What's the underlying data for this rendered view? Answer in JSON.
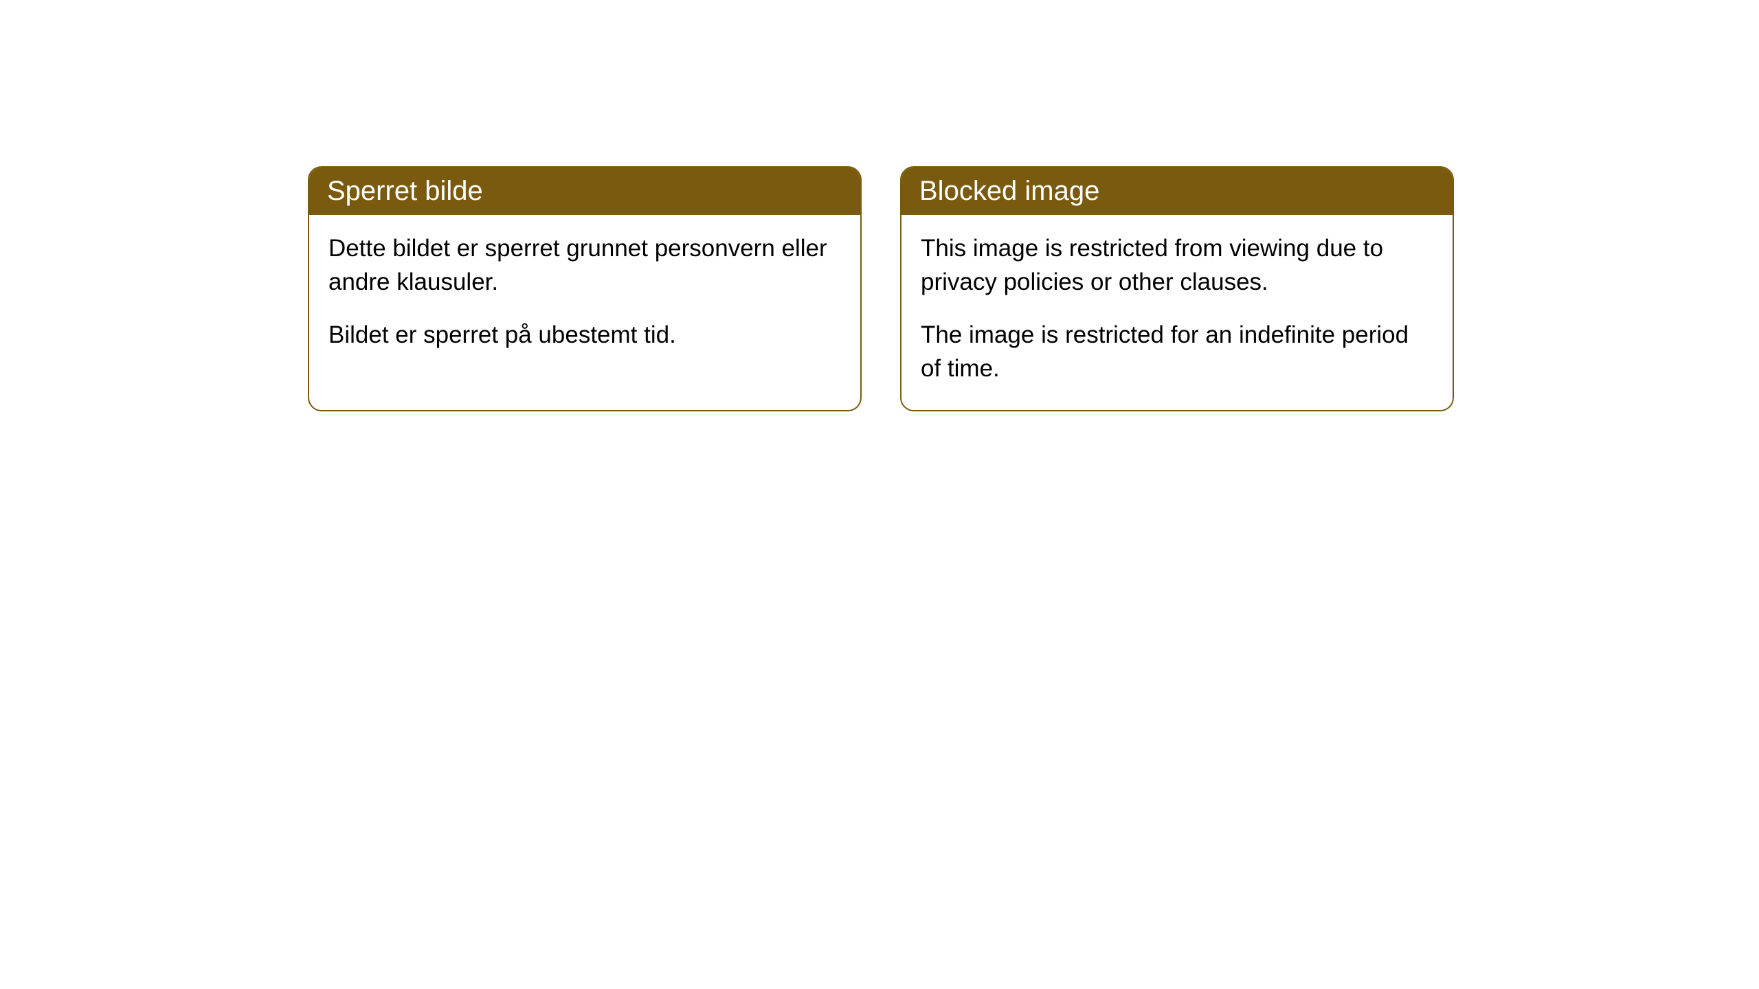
{
  "cards": [
    {
      "title": "Sperret bilde",
      "paragraph1": "Dette bildet er sperret grunnet personvern eller andre klausuler.",
      "paragraph2": "Bildet er sperret på ubestemt tid."
    },
    {
      "title": "Blocked image",
      "paragraph1": "This image is restricted from viewing due to privacy policies or other clauses.",
      "paragraph2": "The image is restricted for an indefinite period of time."
    }
  ],
  "styling": {
    "header_bg_color": "#7a5a0f",
    "header_text_color": "#ffffff",
    "border_color": "#7a5a0f",
    "body_text_color": "#000000",
    "card_bg_color": "#ffffff",
    "page_bg_color": "#ffffff",
    "border_radius": 20,
    "title_fontsize": 40,
    "body_fontsize": 35
  }
}
